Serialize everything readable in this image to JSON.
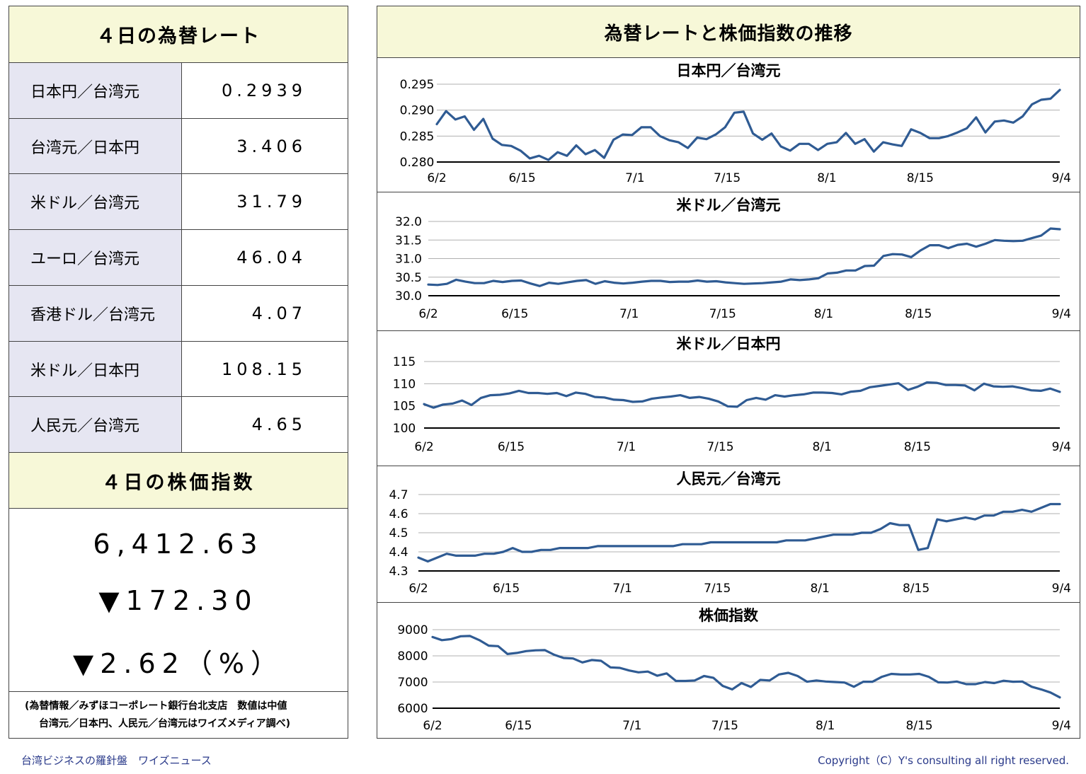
{
  "left": {
    "fx_header": "４日の為替レート",
    "rates": [
      {
        "label": "日本円／台湾元",
        "value": "0.2939"
      },
      {
        "label": "台湾元／日本円",
        "value": "3.406"
      },
      {
        "label": "米ドル／台湾元",
        "value": "31.79"
      },
      {
        "label": "ユーロ／台湾元",
        "value": "46.04"
      },
      {
        "label": "香港ドル／台湾元",
        "value": "4.07"
      },
      {
        "label": "米ドル／日本円",
        "value": "108.15"
      },
      {
        "label": "人民元／台湾元",
        "value": "4.65"
      }
    ],
    "stock_header": "４日の株価指数",
    "stock_value": "6,412.63",
    "stock_change": "▼172.30",
    "stock_pct": "▼2.62（%）",
    "note_line1": "(為替情報／みずほコーポレート銀行台北支店　数値は中値",
    "note_line2": "台湾元／日本円、人民元／台湾元はワイズメディア調べ)"
  },
  "right_title": "為替レートと株価指数の推移",
  "footer": {
    "left": "台湾ビジネスの羅針盤　ワイズニュース",
    "right": "Copyright（C）Y's consulting all right reserved."
  },
  "colors": {
    "line": "#2f5b93",
    "header_bg": "#f7f8d8",
    "label_bg": "#e6e6f2",
    "footer_text": "#2a3a8a"
  },
  "chart_data": [
    {
      "type": "line",
      "title": "日本円／台湾元",
      "xticks": [
        "6/2",
        "6/15",
        "7/1",
        "7/15",
        "8/1",
        "8/15",
        "9/4"
      ],
      "yticks": [
        "0.280",
        "0.285",
        "0.290",
        "0.295"
      ],
      "ylim": [
        0.28,
        0.295
      ],
      "grid": true,
      "series": [
        {
          "values": [
            0.2873,
            0.2898,
            0.2882,
            0.2888,
            0.2862,
            0.2883,
            0.2845,
            0.2833,
            0.2831,
            0.2822,
            0.2807,
            0.2812,
            0.2804,
            0.2819,
            0.2812,
            0.2832,
            0.2815,
            0.2823,
            0.2808,
            0.2843,
            0.2853,
            0.2852,
            0.2867,
            0.2867,
            0.285,
            0.2842,
            0.2838,
            0.2827,
            0.2847,
            0.2844,
            0.2853,
            0.2867,
            0.2895,
            0.2897,
            0.2855,
            0.2843,
            0.2855,
            0.283,
            0.2822,
            0.2835,
            0.2835,
            0.2823,
            0.2835,
            0.2838,
            0.2856,
            0.2835,
            0.2844,
            0.282,
            0.2838,
            0.2834,
            0.2831,
            0.2863,
            0.2856,
            0.2846,
            0.2846,
            0.285,
            0.2857,
            0.2865,
            0.2886,
            0.2857,
            0.2878,
            0.288,
            0.2876,
            0.2888,
            0.2911,
            0.292,
            0.2922,
            0.2939
          ]
        }
      ]
    },
    {
      "type": "line",
      "title": "米ドル／台湾元",
      "xticks": [
        "6/2",
        "6/15",
        "7/1",
        "7/15",
        "8/1",
        "8/15",
        "9/4"
      ],
      "yticks": [
        "30.0",
        "30.5",
        "31.0",
        "31.5",
        "32.0"
      ],
      "ylim": [
        30.0,
        32.0
      ],
      "grid": true,
      "series": [
        {
          "values": [
            30.3,
            30.29,
            30.32,
            30.43,
            30.38,
            30.34,
            30.34,
            30.4,
            30.37,
            30.4,
            30.41,
            30.33,
            30.26,
            30.35,
            30.32,
            30.36,
            30.4,
            30.42,
            30.32,
            30.39,
            30.35,
            30.33,
            30.35,
            30.38,
            30.4,
            30.4,
            30.37,
            30.38,
            30.38,
            30.41,
            30.38,
            30.39,
            30.36,
            30.34,
            30.32,
            30.33,
            30.34,
            30.36,
            30.38,
            30.44,
            30.42,
            30.44,
            30.47,
            30.6,
            30.62,
            30.68,
            30.68,
            30.8,
            30.81,
            31.07,
            31.12,
            31.11,
            31.04,
            31.22,
            31.36,
            31.36,
            31.28,
            31.37,
            31.4,
            31.32,
            31.4,
            31.5,
            31.48,
            31.47,
            31.48,
            31.55,
            31.62,
            31.81,
            31.79
          ]
        }
      ]
    },
    {
      "type": "line",
      "title": "米ドル／日本円",
      "xticks": [
        "6/2",
        "6/15",
        "7/1",
        "7/15",
        "8/1",
        "8/15",
        "9/4"
      ],
      "yticks": [
        "100",
        "105",
        "110",
        "115"
      ],
      "ylim": [
        100,
        115
      ],
      "grid": true,
      "series": [
        {
          "values": [
            105.4,
            104.6,
            105.3,
            105.5,
            106.2,
            105.2,
            106.8,
            107.4,
            107.5,
            107.8,
            108.4,
            107.9,
            107.9,
            107.7,
            107.9,
            107.2,
            108.0,
            107.7,
            107.0,
            106.9,
            106.4,
            106.3,
            105.9,
            106.0,
            106.6,
            106.9,
            107.1,
            107.4,
            106.8,
            107.0,
            106.6,
            106.0,
            104.9,
            104.8,
            106.3,
            106.8,
            106.4,
            107.4,
            107.1,
            107.4,
            107.6,
            108.0,
            108.0,
            107.9,
            107.6,
            108.2,
            108.4,
            109.2,
            109.5,
            109.8,
            110.1,
            108.6,
            109.3,
            110.3,
            110.2,
            109.7,
            109.7,
            109.6,
            108.5,
            110.0,
            109.4,
            109.3,
            109.4,
            109.0,
            108.5,
            108.4,
            108.9,
            108.15
          ]
        }
      ]
    },
    {
      "type": "line",
      "title": "人民元／台湾元",
      "xticks": [
        "6/2",
        "6/15",
        "7/1",
        "7/15",
        "8/1",
        "8/15",
        "9/4"
      ],
      "yticks": [
        "4.3",
        "4.4",
        "4.5",
        "4.6",
        "4.7"
      ],
      "ylim": [
        4.3,
        4.7
      ],
      "grid": true,
      "series": [
        {
          "values": [
            4.37,
            4.35,
            4.37,
            4.39,
            4.38,
            4.38,
            4.38,
            4.39,
            4.39,
            4.4,
            4.42,
            4.4,
            4.4,
            4.41,
            4.41,
            4.42,
            4.42,
            4.42,
            4.42,
            4.43,
            4.43,
            4.43,
            4.43,
            4.43,
            4.43,
            4.43,
            4.43,
            4.43,
            4.44,
            4.44,
            4.44,
            4.45,
            4.45,
            4.45,
            4.45,
            4.45,
            4.45,
            4.45,
            4.45,
            4.46,
            4.46,
            4.46,
            4.47,
            4.48,
            4.49,
            4.49,
            4.49,
            4.5,
            4.5,
            4.52,
            4.55,
            4.54,
            4.54,
            4.41,
            4.42,
            4.57,
            4.56,
            4.57,
            4.58,
            4.57,
            4.59,
            4.59,
            4.61,
            4.61,
            4.62,
            4.61,
            4.63,
            4.65,
            4.65
          ]
        }
      ]
    },
    {
      "type": "line",
      "title": "株価指数",
      "xticks": [
        "6/2",
        "6/15",
        "7/1",
        "7/15",
        "8/1",
        "8/15",
        "9/4"
      ],
      "yticks": [
        "6000",
        "7000",
        "8000",
        "9000"
      ],
      "ylim": [
        6000,
        9000
      ],
      "grid": true,
      "series": [
        {
          "values": [
            8720,
            8600,
            8640,
            8750,
            8760,
            8600,
            8390,
            8370,
            8070,
            8110,
            8180,
            8210,
            8220,
            8040,
            7920,
            7900,
            7750,
            7840,
            7810,
            7560,
            7540,
            7440,
            7370,
            7400,
            7240,
            7330,
            7040,
            7040,
            7060,
            7230,
            7160,
            6850,
            6720,
            6960,
            6810,
            7080,
            7060,
            7290,
            7350,
            7230,
            7010,
            7060,
            7020,
            7000,
            6980,
            6820,
            7010,
            7010,
            7200,
            7310,
            7290,
            7290,
            7310,
            7200,
            6990,
            6980,
            7020,
            6920,
            6920,
            7000,
            6960,
            7050,
            7010,
            7020,
            6820,
            6720,
            6600,
            6412.63
          ]
        }
      ]
    }
  ]
}
